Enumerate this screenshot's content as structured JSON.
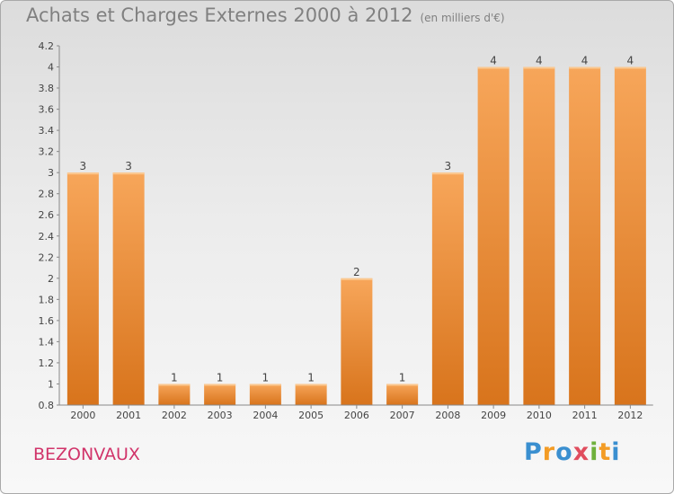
{
  "header": {
    "title": "Achats et Charges Externes 2000 à 2012",
    "unit": "(en milliers d'€)"
  },
  "footer": {
    "place": "BEZONVAUX",
    "logo_letters": [
      "P",
      "r",
      "o",
      "x",
      "i",
      "t",
      "i"
    ],
    "logo_colors": [
      "#3a8fd0",
      "#f39c26",
      "#3a8fd0",
      "#e04d5e",
      "#6fb13c",
      "#f39c26",
      "#3a8fd0"
    ]
  },
  "colors": {
    "bar_light": "#f7a65a",
    "bar_dark": "#d8741c",
    "title": "#808080",
    "place": "#d1346a"
  },
  "chart_data": {
    "type": "bar",
    "categories": [
      "2000",
      "2001",
      "2002",
      "2003",
      "2004",
      "2005",
      "2006",
      "2007",
      "2008",
      "2009",
      "2010",
      "2011",
      "2012"
    ],
    "values": [
      3,
      3,
      1,
      1,
      1,
      1,
      2,
      1,
      3,
      4,
      4,
      4,
      4
    ],
    "data_labels": [
      "3",
      "3",
      "1",
      "1",
      "1",
      "1",
      "2",
      "1",
      "3",
      "4",
      "4",
      "4",
      "4"
    ],
    "yticks": [
      "0.8",
      "1",
      "1.2",
      "1.4",
      "1.6",
      "1.8",
      "2",
      "2.2",
      "2.4",
      "2.6",
      "2.8",
      "3",
      "3.2",
      "3.4",
      "3.6",
      "3.8",
      "4",
      "4.2"
    ],
    "ylim": [
      0.8,
      4.2
    ],
    "grid": false,
    "title": "Achats et Charges Externes 2000 à 2012",
    "xlabel": "",
    "ylabel": ""
  }
}
